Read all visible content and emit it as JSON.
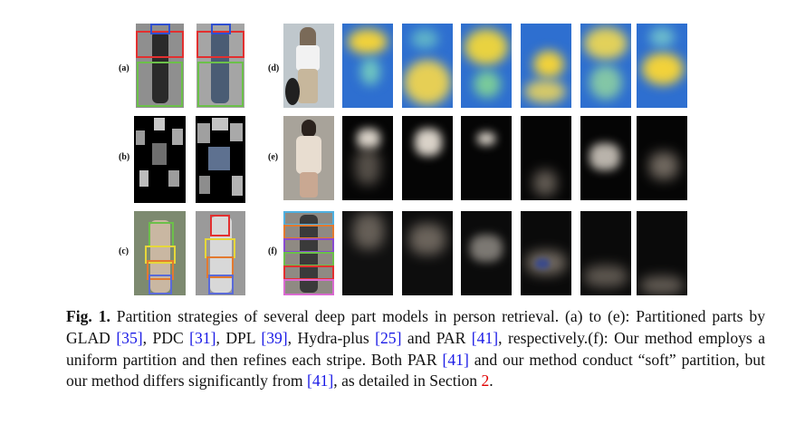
{
  "panels": {
    "a": "(a)",
    "b": "(b)",
    "c": "(c)",
    "d": "(d)",
    "e": "(e)",
    "f": "(f)"
  },
  "caption": {
    "figure_label": "Fig. 1.",
    "t1": " Partition strategies of several deep part models in person retrieval. (a) to (e): Partitioned parts by GLAD ",
    "c1": "[35]",
    "t2": ", PDC ",
    "c2": "[31]",
    "t3": ", DPL ",
    "c3": "[39]",
    "t4": ", Hydra-plus ",
    "c4": "[25]",
    "t5": " and PAR ",
    "c5": "[41]",
    "t6": ", respectively.(f): Our method employs a uniform partition and then refines each stripe. Both PAR ",
    "c6": "[41]",
    "t7": " and our method conduct “soft” partition, but our method differs significantly from ",
    "c7": "[41]",
    "t8": ", as detailed in Section ",
    "sec": "2",
    "t9": "."
  },
  "colors": {
    "citation": "#1a1ae6",
    "section_ref": "#e00000",
    "heat_blue": "#2e6fd0",
    "heat_yellow": "#f2d23a"
  }
}
